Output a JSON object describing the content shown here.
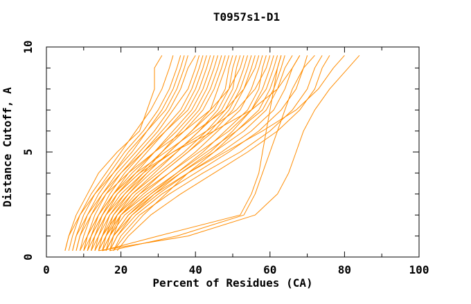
{
  "page": {
    "background": "#ffffff"
  },
  "chart_data": {
    "type": "line",
    "title": "T0957s1-D1",
    "xlabel": "Percent of Residues (CA)",
    "ylabel": "Distance Cutoff, A",
    "xlim": [
      0,
      100
    ],
    "ylim": [
      0,
      10
    ],
    "grid": "off",
    "legend": "none",
    "frame": "box with inward ticks on all four sides",
    "line_color": "#ff8c00",
    "axis_color": "#000000",
    "x_major_ticks": [
      0,
      20,
      40,
      60,
      80,
      100
    ],
    "x_minor_ticks": [
      10,
      30,
      50,
      70,
      90
    ],
    "x_tick_labels": [
      "0",
      "20",
      "40",
      "60",
      "80",
      "100"
    ],
    "y_major_ticks": [
      0,
      5,
      10
    ],
    "y_minor_ticks": [
      1,
      2,
      3,
      4,
      6,
      7,
      8,
      9
    ],
    "y_tick_labels": [
      "0",
      "5",
      "10"
    ],
    "cutoffs": [
      0.3,
      1,
      2,
      3,
      4,
      5,
      6,
      7,
      8,
      9,
      9.6
    ],
    "series_x": [
      [
        5,
        6,
        8,
        11,
        14,
        19,
        25,
        27,
        29,
        29,
        31
      ],
      [
        6,
        7,
        9,
        12,
        16,
        20,
        24,
        28,
        31,
        33,
        34
      ],
      [
        7,
        8,
        10,
        13,
        17,
        21,
        26,
        30,
        33,
        35,
        36
      ],
      [
        5,
        6,
        9,
        13,
        18,
        23,
        27,
        31,
        34,
        36,
        37
      ],
      [
        8,
        9,
        11,
        14,
        18,
        22,
        27,
        32,
        35,
        37,
        38
      ],
      [
        9,
        10,
        12,
        15,
        19,
        24,
        29,
        33,
        36,
        38,
        40
      ],
      [
        10,
        11,
        13,
        16,
        20,
        25,
        30,
        34,
        38,
        40,
        41
      ],
      [
        11,
        12,
        14,
        17,
        21,
        26,
        31,
        36,
        39,
        41,
        42
      ],
      [
        12,
        13,
        15,
        18,
        22,
        27,
        32,
        37,
        40,
        42,
        43
      ],
      [
        7,
        8,
        11,
        15,
        20,
        26,
        32,
        38,
        41,
        43,
        44
      ],
      [
        13,
        14,
        16,
        19,
        24,
        29,
        34,
        39,
        42,
        44,
        45
      ],
      [
        9,
        11,
        14,
        18,
        23,
        29,
        35,
        40,
        43,
        45,
        46
      ],
      [
        14,
        15,
        17,
        21,
        26,
        31,
        36,
        41,
        44,
        46,
        47
      ],
      [
        10,
        12,
        15,
        19,
        25,
        31,
        37,
        42,
        45,
        47,
        48
      ],
      [
        15,
        16,
        18,
        22,
        27,
        33,
        39,
        44,
        46,
        48,
        49
      ],
      [
        11,
        13,
        16,
        21,
        27,
        33,
        39,
        45,
        48,
        49,
        50
      ],
      [
        16,
        17,
        19,
        23,
        29,
        35,
        41,
        46,
        49,
        50,
        51
      ],
      [
        12,
        14,
        17,
        22,
        28,
        35,
        41,
        47,
        50,
        51,
        52
      ],
      [
        8,
        9,
        12,
        16,
        22,
        29,
        37,
        44,
        49,
        52,
        53
      ],
      [
        13,
        15,
        18,
        23,
        30,
        37,
        43,
        48,
        51,
        53,
        54
      ],
      [
        17,
        18,
        20,
        25,
        31,
        38,
        44,
        49,
        52,
        54,
        55
      ],
      [
        14,
        16,
        19,
        24,
        31,
        38,
        45,
        50,
        53,
        55,
        56
      ],
      [
        10,
        11,
        14,
        18,
        24,
        32,
        40,
        48,
        53,
        56,
        57
      ],
      [
        15,
        17,
        20,
        26,
        33,
        40,
        46,
        52,
        55,
        57,
        58
      ],
      [
        16,
        18,
        22,
        28,
        35,
        42,
        48,
        54,
        57,
        58,
        59
      ],
      [
        12,
        13,
        16,
        20,
        26,
        34,
        43,
        51,
        56,
        59,
        60
      ],
      [
        17,
        19,
        23,
        29,
        36,
        44,
        50,
        55,
        58,
        60,
        61
      ],
      [
        13,
        15,
        19,
        25,
        33,
        41,
        49,
        55,
        59,
        61,
        62
      ],
      [
        18,
        21,
        26,
        32,
        38,
        45,
        51,
        57,
        60,
        62,
        63
      ],
      [
        14,
        16,
        20,
        27,
        35,
        43,
        51,
        58,
        61,
        63,
        64
      ],
      [
        15,
        17,
        21,
        28,
        36,
        45,
        53,
        59,
        62,
        64,
        66
      ],
      [
        16,
        18,
        23,
        30,
        38,
        47,
        55,
        61,
        64,
        66,
        68
      ],
      [
        11,
        12,
        15,
        19,
        25,
        34,
        45,
        55,
        62,
        66,
        68
      ],
      [
        17,
        19,
        24,
        31,
        40,
        49,
        57,
        63,
        67,
        69,
        70
      ],
      [
        15,
        30,
        52,
        55,
        57,
        58,
        59,
        60,
        61,
        62,
        63
      ],
      [
        17,
        35,
        53,
        56,
        58,
        60,
        62,
        64,
        66,
        69,
        72
      ],
      [
        18,
        20,
        25,
        33,
        42,
        52,
        60,
        66,
        70,
        72,
        74
      ],
      [
        19,
        22,
        28,
        36,
        45,
        54,
        62,
        68,
        72,
        74,
        76
      ],
      [
        16,
        18,
        22,
        29,
        38,
        48,
        58,
        67,
        73,
        77,
        80
      ],
      [
        14,
        38,
        56,
        62,
        65,
        67,
        69,
        72,
        76,
        81,
        84
      ]
    ]
  }
}
